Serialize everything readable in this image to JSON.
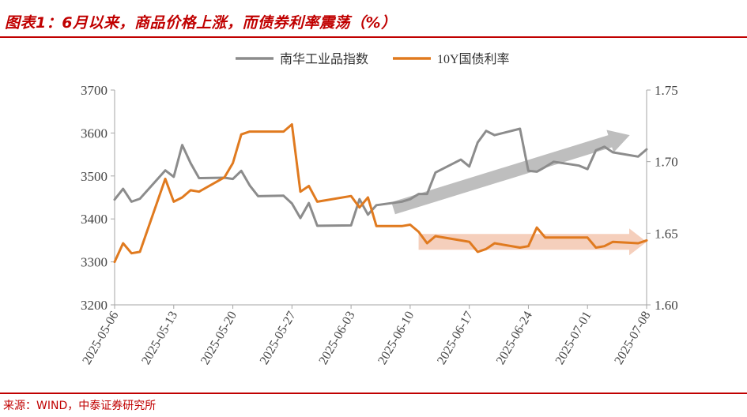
{
  "header": {
    "title": "图表1：6月以来，商品价格上涨，而债券利率震荡（%）"
  },
  "footer": {
    "source": "来源：WIND，中泰证券研究所"
  },
  "colors": {
    "accent": "#c00000",
    "series1": "#8c8c8c",
    "series2": "#e07a1f",
    "arrow_up": "#b3b3b3",
    "arrow_flat": "#f3c7b0"
  },
  "chart_data": {
    "type": "line",
    "title": "",
    "legend_position": "top-center",
    "xlabel": "",
    "ylabel": "",
    "y2label": "",
    "x_ticks": [
      "2025-05-06",
      "2025-05-13",
      "2025-05-20",
      "2025-05-27",
      "2025-06-03",
      "2025-06-10",
      "2025-06-17",
      "2025-06-24",
      "2025-07-01",
      "2025-07-08"
    ],
    "y_left": {
      "lim": [
        3200,
        3700
      ],
      "ticks": [
        "3200",
        "3300",
        "3400",
        "3500",
        "3600",
        "3700"
      ]
    },
    "y_right": {
      "lim": [
        1.6,
        1.75
      ],
      "ticks": [
        "1.60",
        "1.65",
        "1.70",
        "1.75"
      ]
    },
    "series": [
      {
        "name": "南华工业品指数",
        "axis": "left",
        "x": [
          "2025-05-06",
          "2025-05-07",
          "2025-05-08",
          "2025-05-09",
          "2025-05-12",
          "2025-05-13",
          "2025-05-14",
          "2025-05-15",
          "2025-05-16",
          "2025-05-19",
          "2025-05-20",
          "2025-05-21",
          "2025-05-22",
          "2025-05-23",
          "2025-05-26",
          "2025-05-27",
          "2025-05-28",
          "2025-05-29",
          "2025-05-30",
          "2025-06-03",
          "2025-06-04",
          "2025-06-05",
          "2025-06-06",
          "2025-06-09",
          "2025-06-10",
          "2025-06-11",
          "2025-06-12",
          "2025-06-13",
          "2025-06-16",
          "2025-06-17",
          "2025-06-18",
          "2025-06-19",
          "2025-06-20",
          "2025-06-23",
          "2025-06-24",
          "2025-06-25",
          "2025-06-26",
          "2025-06-27",
          "2025-06-30",
          "2025-07-01",
          "2025-07-02",
          "2025-07-03",
          "2025-07-04",
          "2025-07-07",
          "2025-07-08"
        ],
        "values": [
          3445,
          3470,
          3440,
          3447,
          3513,
          3498,
          3572,
          3530,
          3495,
          3496,
          3493,
          3512,
          3478,
          3453,
          3454,
          3436,
          3402,
          3437,
          3384,
          3385,
          3446,
          3410,
          3432,
          3440,
          3446,
          3458,
          3458,
          3508,
          3538,
          3522,
          3578,
          3605,
          3595,
          3610,
          3512,
          3510,
          3521,
          3533,
          3524,
          3516,
          3560,
          3568,
          3555,
          3545,
          3562
        ]
      },
      {
        "name": "10Y国债利率",
        "axis": "right",
        "x": [
          "2025-05-06",
          "2025-05-07",
          "2025-05-08",
          "2025-05-09",
          "2025-05-12",
          "2025-05-13",
          "2025-05-14",
          "2025-05-15",
          "2025-05-16",
          "2025-05-19",
          "2025-05-20",
          "2025-05-21",
          "2025-05-22",
          "2025-05-23",
          "2025-05-26",
          "2025-05-27",
          "2025-05-28",
          "2025-05-29",
          "2025-05-30",
          "2025-06-03",
          "2025-06-04",
          "2025-06-05",
          "2025-06-06",
          "2025-06-09",
          "2025-06-10",
          "2025-06-11",
          "2025-06-12",
          "2025-06-13",
          "2025-06-16",
          "2025-06-17",
          "2025-06-18",
          "2025-06-19",
          "2025-06-20",
          "2025-06-23",
          "2025-06-24",
          "2025-06-25",
          "2025-06-26",
          "2025-06-27",
          "2025-06-30",
          "2025-07-01",
          "2025-07-02",
          "2025-07-03",
          "2025-07-04",
          "2025-07-07",
          "2025-07-08"
        ],
        "values": [
          1.63,
          1.643,
          1.636,
          1.637,
          1.688,
          1.672,
          1.675,
          1.68,
          1.679,
          1.689,
          1.699,
          1.719,
          1.721,
          1.721,
          1.721,
          1.726,
          1.679,
          1.683,
          1.672,
          1.676,
          1.668,
          1.675,
          1.655,
          1.655,
          1.656,
          1.651,
          1.643,
          1.648,
          1.645,
          1.644,
          1.637,
          1.639,
          1.643,
          1.64,
          1.641,
          1.654,
          1.647,
          1.647,
          1.647,
          1.647,
          1.64,
          1.641,
          1.644,
          1.643,
          1.645
        ]
      }
    ],
    "annotations": [
      {
        "type": "arrow",
        "direction": "up",
        "from_x": "2025-06-08",
        "from_y": 3425,
        "to_x": "2025-07-06",
        "to_y": 3595,
        "axis": "left"
      },
      {
        "type": "arrow",
        "direction": "right",
        "from_x": "2025-06-11",
        "to_x": "2025-07-08",
        "y": 1.644,
        "axis": "right"
      }
    ]
  }
}
